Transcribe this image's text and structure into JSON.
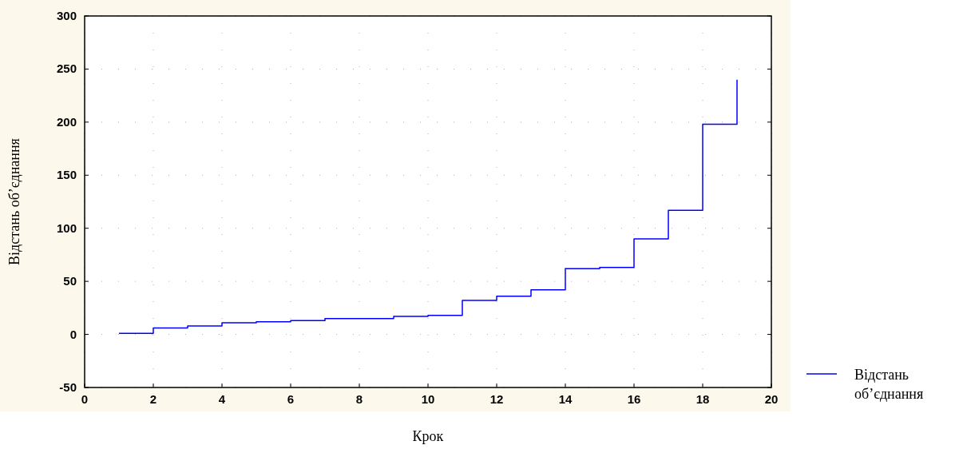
{
  "chart_data": {
    "type": "step",
    "xlabel": "Крок",
    "ylabel": "Відстань об’єднання",
    "x": [
      1,
      2,
      3,
      4,
      5,
      6,
      7,
      8,
      9,
      10,
      11,
      12,
      13,
      14,
      15,
      16,
      17,
      18,
      19
    ],
    "series": [
      {
        "name": "Відстань об’єднання",
        "color": "#0000ff",
        "values": [
          1,
          6,
          8,
          11,
          12,
          13,
          15,
          15,
          17,
          18,
          32,
          36,
          42,
          62,
          63,
          90,
          117,
          198,
          240
        ]
      }
    ],
    "xlim": [
      0,
      20
    ],
    "xticks": [
      0,
      2,
      4,
      6,
      8,
      10,
      12,
      14,
      16,
      18,
      20
    ],
    "ylim": [
      -50,
      300
    ],
    "yticks": [
      -50,
      0,
      50,
      100,
      150,
      200,
      250,
      300
    ],
    "grid": true,
    "legend": "right",
    "marker": "none",
    "line_style": "solid"
  }
}
